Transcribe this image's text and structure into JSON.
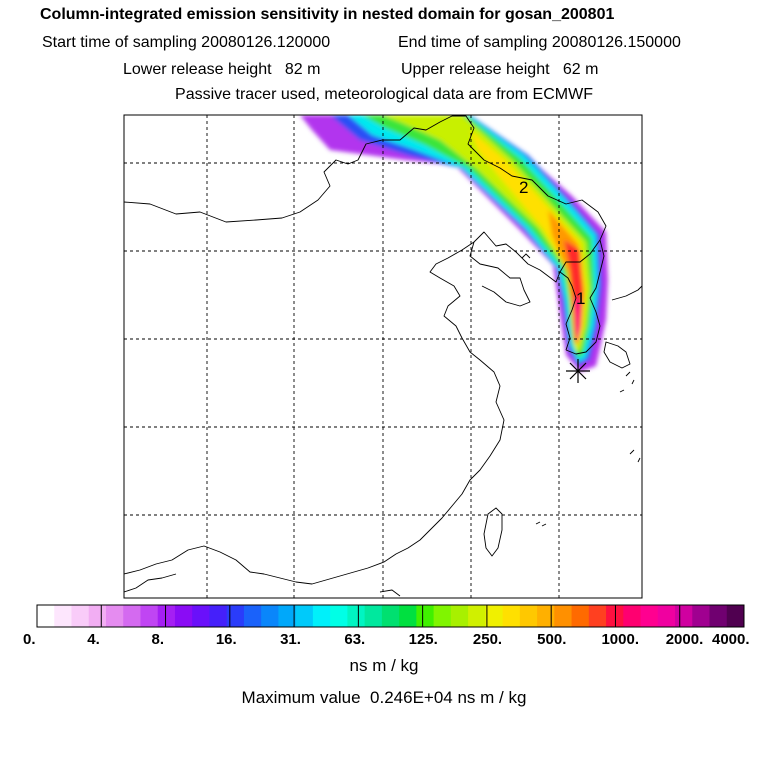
{
  "header": {
    "title": "Column-integrated emission sensitivity in nested domain for gosan_200801",
    "start": "Start time of sampling 20080126.120000",
    "end": "End time of sampling 20080126.150000",
    "lower": "Lower release height   82 m",
    "upper": "Upper release height   62 m",
    "note": "Passive tracer used, meteorological data are from ECMWF"
  },
  "map": {
    "labels": [
      "1",
      "2"
    ],
    "release_marker": "asterisk-icon"
  },
  "colorbar": {
    "ticks": [
      "0.",
      "4.",
      "8.",
      "16.",
      "31.",
      "63.",
      "125.",
      "250.",
      "500.",
      "1000.",
      "2000.",
      "4000."
    ],
    "colors": [
      "#ffffff",
      "#fde6fd",
      "#f9ccf9",
      "#f2aef3",
      "#e58cf0",
      "#d46af0",
      "#c045f3",
      "#a51ff3",
      "#8a0cf5",
      "#6a10fa",
      "#4520fa",
      "#2a3cfa",
      "#1a62fa",
      "#0a86fa",
      "#00a8fa",
      "#00cafa",
      "#00f0fa",
      "#00ffe6",
      "#00f5c2",
      "#00e89e",
      "#00e070",
      "#00e040",
      "#40f000",
      "#80f500",
      "#a8f000",
      "#d0f000",
      "#f0f000",
      "#ffe000",
      "#ffc800",
      "#ffb000",
      "#ff9000",
      "#ff6a00",
      "#ff4020",
      "#ff1040",
      "#ff0070",
      "#ff0090",
      "#f000a0",
      "#d000a0",
      "#a00090",
      "#700070",
      "#500050"
    ],
    "units": "ns m / kg"
  },
  "footer": {
    "max_value": "Maximum value  0.246E+04 ns m / kg"
  }
}
